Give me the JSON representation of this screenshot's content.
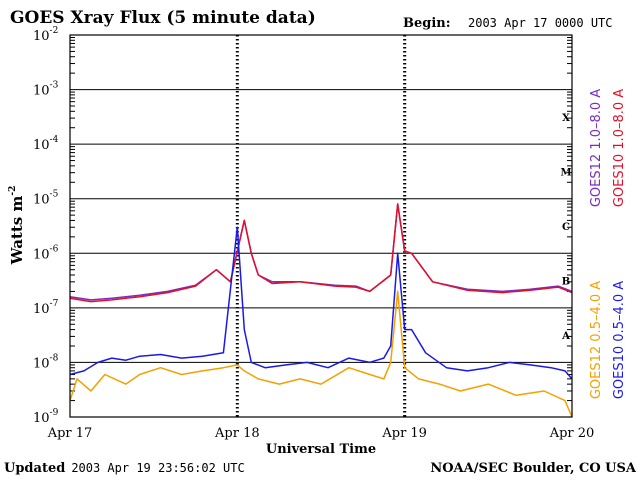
{
  "header": {
    "title": "GOES Xray Flux (5 minute data)",
    "begin_label": "Begin:",
    "begin_value": "2003 Apr 17 0000 UTC"
  },
  "footer": {
    "updated_label": "Updated",
    "updated_value": "2003 Apr 19 23:56:02 UTC",
    "credit": "NOAA/SEC Boulder, CO USA"
  },
  "chart_data": {
    "type": "line",
    "title": "GOES Xray Flux (5 minute data)",
    "xlabel": "Universal Time",
    "ylabel": "Watts m",
    "ylabel_sup": "-2",
    "y_scale": "log",
    "ylim": [
      1e-09,
      0.01
    ],
    "xlim": [
      0,
      72
    ],
    "x_unit": "hours since 2003 Apr 17 0000 UTC",
    "y_ticks": [
      {
        "base": "10",
        "exp": "-2"
      },
      {
        "base": "10",
        "exp": "-3"
      },
      {
        "base": "10",
        "exp": "-4"
      },
      {
        "base": "10",
        "exp": "-5"
      },
      {
        "base": "10",
        "exp": "-6"
      },
      {
        "base": "10",
        "exp": "-7"
      },
      {
        "base": "10",
        "exp": "-8"
      },
      {
        "base": "10",
        "exp": "-9"
      }
    ],
    "x_ticks": [
      {
        "label": "Apr 17",
        "x": 0
      },
      {
        "label": "Apr 18",
        "x": 24
      },
      {
        "label": "Apr 19",
        "x": 48
      },
      {
        "label": "Apr 20",
        "x": 72
      }
    ],
    "flare_classes": [
      "X",
      "M",
      "C",
      "B",
      "A"
    ],
    "grid": true,
    "series": [
      {
        "name": "GOES12 1.0–8.0 A",
        "color": "#7a2bc4",
        "points": [
          [
            0,
            1.6e-07
          ],
          [
            3,
            1.4e-07
          ],
          [
            6,
            1.5e-07
          ],
          [
            10,
            1.7e-07
          ],
          [
            14,
            2e-07
          ],
          [
            18,
            2.6e-07
          ],
          [
            21,
            5e-07
          ],
          [
            23,
            3e-07
          ],
          [
            25,
            4e-06
          ],
          [
            26,
            1e-06
          ],
          [
            27,
            4e-07
          ],
          [
            29,
            3e-07
          ],
          [
            33,
            3e-07
          ],
          [
            38,
            2.6e-07
          ],
          [
            41,
            2.5e-07
          ],
          [
            43,
            2e-07
          ],
          [
            46,
            4e-07
          ],
          [
            47,
            8e-06
          ],
          [
            48,
            1.1e-06
          ],
          [
            49,
            1e-06
          ],
          [
            52,
            3e-07
          ],
          [
            57,
            2.2e-07
          ],
          [
            62,
            2e-07
          ],
          [
            66,
            2.2e-07
          ],
          [
            70,
            2.5e-07
          ],
          [
            72,
            2e-07
          ]
        ]
      },
      {
        "name": "GOES10 1.0–8.0 A",
        "color": "#e0102a",
        "points": [
          [
            0,
            1.5e-07
          ],
          [
            3,
            1.3e-07
          ],
          [
            6,
            1.4e-07
          ],
          [
            10,
            1.6e-07
          ],
          [
            14,
            1.9e-07
          ],
          [
            18,
            2.5e-07
          ],
          [
            21,
            5e-07
          ],
          [
            23,
            3e-07
          ],
          [
            25,
            4e-06
          ],
          [
            26,
            1e-06
          ],
          [
            27,
            4e-07
          ],
          [
            29,
            2.8e-07
          ],
          [
            33,
            3e-07
          ],
          [
            38,
            2.5e-07
          ],
          [
            41,
            2.4e-07
          ],
          [
            43,
            2e-07
          ],
          [
            46,
            4e-07
          ],
          [
            47,
            8e-06
          ],
          [
            48,
            1.1e-06
          ],
          [
            49,
            1e-06
          ],
          [
            52,
            3e-07
          ],
          [
            57,
            2.1e-07
          ],
          [
            62,
            1.9e-07
          ],
          [
            66,
            2.1e-07
          ],
          [
            70,
            2.4e-07
          ],
          [
            72,
            1.9e-07
          ]
        ]
      },
      {
        "name": "GOES12 0.5–4.0 A",
        "color": "#f5a000",
        "points": [
          [
            0,
            2e-09
          ],
          [
            1,
            5e-09
          ],
          [
            3,
            3e-09
          ],
          [
            5,
            6e-09
          ],
          [
            8,
            4e-09
          ],
          [
            10,
            6e-09
          ],
          [
            13,
            8e-09
          ],
          [
            16,
            6e-09
          ],
          [
            19,
            7e-09
          ],
          [
            22,
            8e-09
          ],
          [
            24,
            9e-09
          ],
          [
            25,
            7e-09
          ],
          [
            27,
            5e-09
          ],
          [
            30,
            4e-09
          ],
          [
            33,
            5e-09
          ],
          [
            36,
            4e-09
          ],
          [
            40,
            8e-09
          ],
          [
            43,
            6e-09
          ],
          [
            45,
            5e-09
          ],
          [
            46,
            1e-08
          ],
          [
            47,
            2e-07
          ],
          [
            48,
            8e-09
          ],
          [
            50,
            5e-09
          ],
          [
            53,
            4e-09
          ],
          [
            56,
            3e-09
          ],
          [
            60,
            4e-09
          ],
          [
            64,
            2.5e-09
          ],
          [
            68,
            3e-09
          ],
          [
            71,
            2e-09
          ],
          [
            72,
            1e-09
          ]
        ]
      },
      {
        "name": "GOES10 0.5–4.0 A",
        "color": "#1a1ae6",
        "points": [
          [
            0,
            6e-09
          ],
          [
            2,
            7e-09
          ],
          [
            4,
            1e-08
          ],
          [
            6,
            1.2e-08
          ],
          [
            8,
            1.1e-08
          ],
          [
            10,
            1.3e-08
          ],
          [
            13,
            1.4e-08
          ],
          [
            16,
            1.2e-08
          ],
          [
            19,
            1.3e-08
          ],
          [
            22,
            1.5e-08
          ],
          [
            24,
            3e-06
          ],
          [
            25,
            4e-08
          ],
          [
            26,
            1e-08
          ],
          [
            28,
            8e-09
          ],
          [
            31,
            9e-09
          ],
          [
            34,
            1e-08
          ],
          [
            37,
            8e-09
          ],
          [
            40,
            1.2e-08
          ],
          [
            43,
            1e-08
          ],
          [
            45,
            1.2e-08
          ],
          [
            46,
            2e-08
          ],
          [
            47,
            1e-06
          ],
          [
            48,
            4e-08
          ],
          [
            49,
            4e-08
          ],
          [
            51,
            1.5e-08
          ],
          [
            54,
            8e-09
          ],
          [
            57,
            7e-09
          ],
          [
            60,
            8e-09
          ],
          [
            63,
            1e-08
          ],
          [
            66,
            9e-09
          ],
          [
            69,
            8e-09
          ],
          [
            71,
            7e-09
          ],
          [
            72,
            5e-09
          ]
        ]
      }
    ]
  }
}
